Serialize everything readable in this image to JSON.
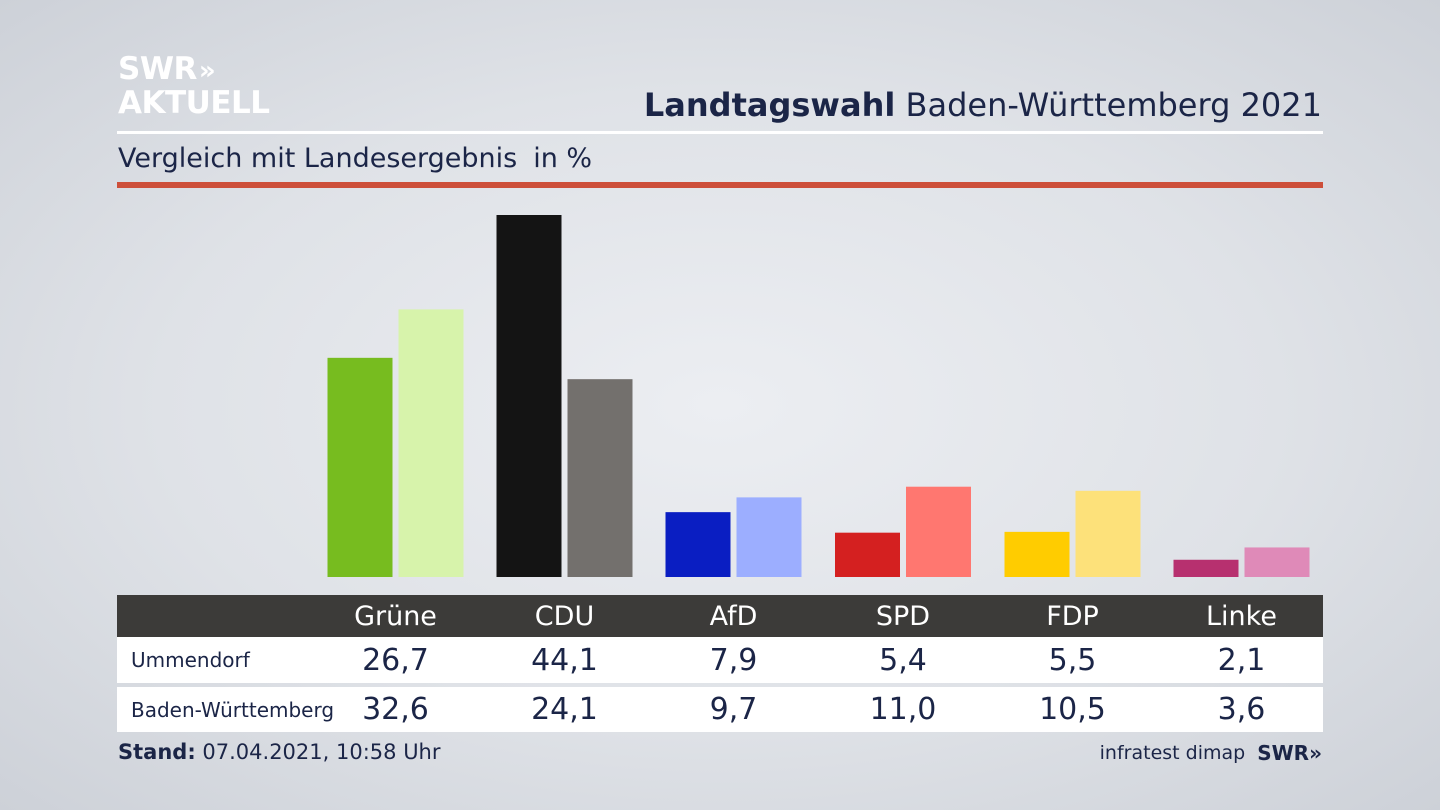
{
  "logo": {
    "line1": "SWR",
    "arrows": "»",
    "line2": "AKTUELL"
  },
  "header": {
    "title_bold": "Landtagswahl",
    "title_rest": "Baden-Württemberg 2021"
  },
  "subtitle": {
    "text": "Vergleich mit Landesergebnis",
    "unit": "in %"
  },
  "footer": {
    "stand_label": "Stand:",
    "stand_value": "07.04.2021, 10:58 Uhr",
    "source": "infratest dimap",
    "source_logo": "SWR»"
  },
  "chart_data": {
    "type": "bar",
    "categories": [
      "Grüne",
      "CDU",
      "AfD",
      "SPD",
      "FDP",
      "Linke"
    ],
    "series": [
      {
        "name": "Ummendorf",
        "values": [
          26.7,
          44.1,
          7.9,
          5.4,
          5.5,
          2.1
        ]
      },
      {
        "name": "Baden-Württemberg",
        "values": [
          32.6,
          24.1,
          9.7,
          11.0,
          10.5,
          3.6
        ]
      }
    ],
    "display": {
      "Ummendorf": [
        "26,7",
        "44,1",
        "7,9",
        "5,4",
        "5,5",
        "2,1"
      ],
      "Baden-Württemberg": [
        "32,6",
        "24,1",
        "9,7",
        "11,0",
        "10,5",
        "3,6"
      ]
    },
    "colors": {
      "Ummendorf": [
        "#77bc1f",
        "#141414",
        "#0a1ec2",
        "#d42020",
        "#ffcc00",
        "#b7306f"
      ],
      "Baden-Württemberg": [
        "#d7f3ab",
        "#73706d",
        "#9caeff",
        "#ff7770",
        "#fde17a",
        "#df8ab8"
      ]
    },
    "ylim": [
      0,
      44.1
    ]
  }
}
